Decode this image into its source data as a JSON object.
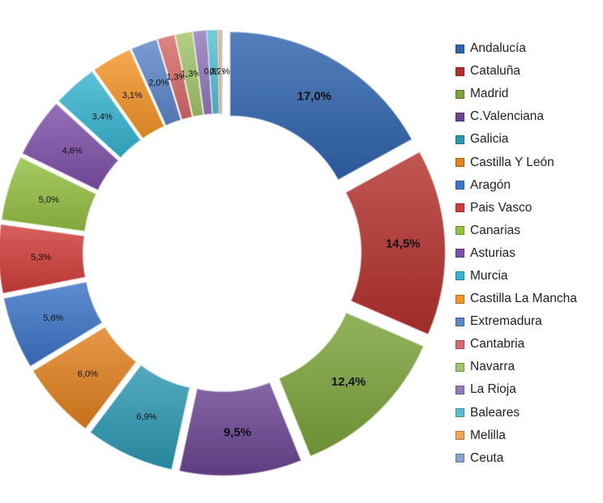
{
  "chart_data": {
    "type": "pie",
    "variant": "exploded-doughnut",
    "categories": [
      "Andalucía",
      "Cataluña",
      "Madrid",
      "C.Valenciana",
      "Galicia",
      "Castilla Y León",
      "Aragón",
      "Pais Vasco",
      "Canarias",
      "Asturias",
      "Murcia",
      "Castilla La Mancha",
      "Extremadura",
      "Cantabria",
      "Navarra",
      "La Rioja",
      "Baleares",
      "Melilla",
      "Ceuta"
    ],
    "values": [
      17.0,
      14.5,
      12.4,
      9.5,
      6.9,
      6.0,
      5.6,
      5.3,
      5.0,
      4.6,
      3.4,
      3.1,
      2.0,
      1.3,
      1.3,
      1.0,
      0.8,
      0.2,
      0.1
    ],
    "labels": [
      "17,0%",
      "14,5%",
      "12,4%",
      "9,5%",
      "6,9%",
      "6,0%",
      "5,6%",
      "5,3%",
      "5,0%",
      "4,6%",
      "3,4%",
      "3,1%",
      "2,0%",
      "1,3%",
      "1,3%",
      "",
      "0,8%",
      "0,2%",
      ""
    ],
    "colors": [
      "#2f63ad",
      "#b3312d",
      "#7aa23a",
      "#6b4592",
      "#2c97b1",
      "#e0801f",
      "#3b73c6",
      "#d03d3a",
      "#93bf42",
      "#7e4fa8",
      "#36b3cf",
      "#f49428",
      "#5b86c8",
      "#d66a68",
      "#a4c56a",
      "#9478bb",
      "#55bfd4",
      "#f3a55a",
      "#8ba3cf"
    ],
    "legend": {
      "position": "right"
    }
  }
}
